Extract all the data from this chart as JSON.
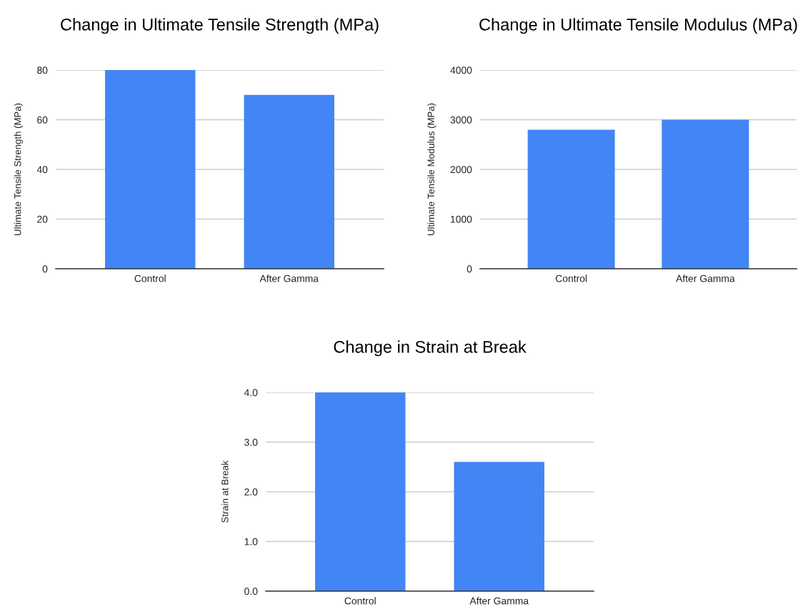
{
  "chart_data": [
    {
      "type": "bar",
      "title": "Change in Ultimate Tensile Strength (MPa)",
      "ylabel": "Ultimate Tensile Strength (MPa)",
      "categories": [
        "Control",
        "After Gamma"
      ],
      "values": [
        80,
        70
      ],
      "color": "#4285f4",
      "ylim": [
        0,
        80
      ],
      "yticks": [
        0,
        20,
        40,
        60,
        80
      ],
      "grid": "y"
    },
    {
      "type": "bar",
      "title": "Change in Ultimate Tensile Modulus (MPa)",
      "ylabel": "Ultimate Tensile Modulus (MPa)",
      "categories": [
        "Control",
        "After Gamma"
      ],
      "values": [
        2800,
        3000
      ],
      "color": "#4285f4",
      "ylim": [
        0,
        4000
      ],
      "yticks": [
        0,
        1000,
        2000,
        3000,
        4000
      ],
      "grid": "y"
    },
    {
      "type": "bar",
      "title": "Change in Strain at Break",
      "ylabel": "Strain at Break",
      "categories": [
        "Control",
        "After Gamma"
      ],
      "values": [
        4.0,
        2.6
      ],
      "color": "#4285f4",
      "ylim": [
        0,
        4
      ],
      "yticks": [
        {
          "value": 0,
          "label": "0.0"
        },
        {
          "value": 1,
          "label": "1.0"
        },
        {
          "value": 2,
          "label": "2.0"
        },
        {
          "value": 3,
          "label": "3.0"
        },
        {
          "value": 4,
          "label": "4.0"
        }
      ],
      "grid": "y"
    }
  ]
}
